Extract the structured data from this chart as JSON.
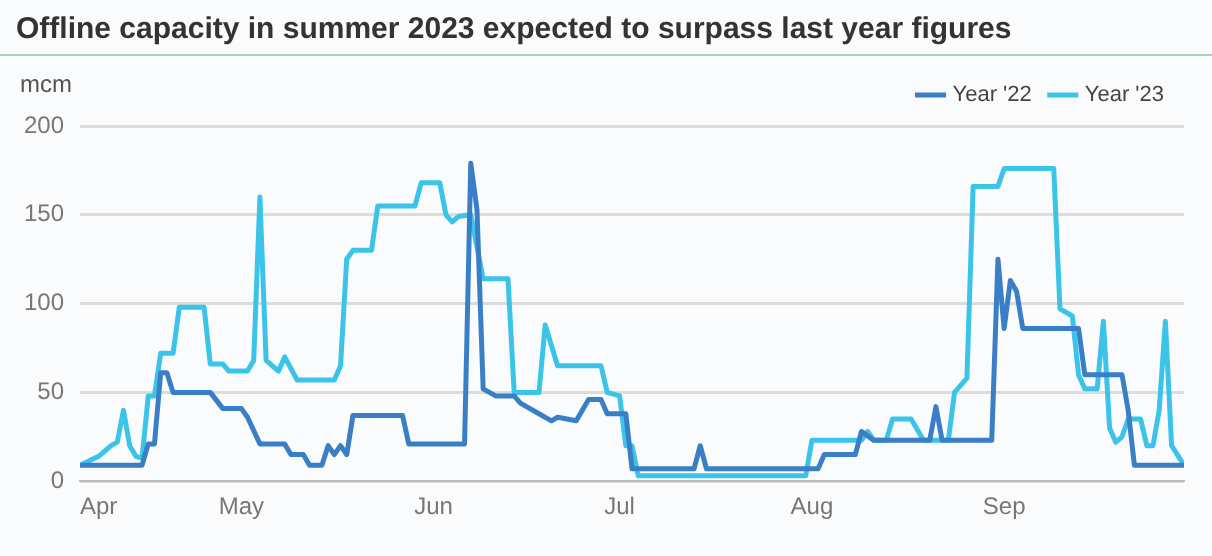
{
  "chart_data": {
    "type": "line",
    "title": "Offline capacity in summer 2023 expected to surpass last year figures",
    "ylabel": "mcm",
    "xlim": [
      "--04-05",
      "--09-30"
    ],
    "xticks": [
      {
        "value": "--04-08",
        "label": "Apr"
      },
      {
        "value": "--05-01",
        "label": "May"
      },
      {
        "value": "--06-01",
        "label": "Jun"
      },
      {
        "value": "--07-01",
        "label": "Jul"
      },
      {
        "value": "--08-01",
        "label": "Aug"
      },
      {
        "value": "--09-01",
        "label": "Sep"
      }
    ],
    "ylim": [
      0,
      200
    ],
    "yticks": [
      0,
      50,
      100,
      150,
      200
    ],
    "grid": "y",
    "legend": "top right",
    "marker": "none",
    "line_style": "solid",
    "series": [
      {
        "name": "Year '22",
        "color": "#3a7ec6",
        "x": [
          "--04-05",
          "--04-15",
          "--04-16",
          "--04-17",
          "--04-18",
          "--04-19",
          "--04-20",
          "--04-26",
          "--04-28",
          "--05-01",
          "--05-02",
          "--05-04",
          "--05-08",
          "--05-09",
          "--05-11",
          "--05-12",
          "--05-14",
          "--05-15",
          "--05-16",
          "--05-17",
          "--05-18",
          "--05-19",
          "--05-27",
          "--05-28",
          "--06-06",
          "--06-07",
          "--06-08",
          "--06-09",
          "--06-11",
          "--06-14",
          "--06-15",
          "--06-18",
          "--06-20",
          "--06-21",
          "--06-24",
          "--06-26",
          "--06-28",
          "--06-29",
          "--07-02",
          "--07-03",
          "--07-13",
          "--07-14",
          "--07-15",
          "--08-02",
          "--08-03",
          "--08-08",
          "--08-09",
          "--08-11",
          "--08-20",
          "--08-21",
          "--08-22",
          "--08-30",
          "--08-31",
          "--09-01",
          "--09-02",
          "--09-03",
          "--09-04",
          "--09-13",
          "--09-14",
          "--09-20",
          "--09-21",
          "--09-22",
          "--09-30"
        ],
        "values": [
          9,
          9,
          21,
          21,
          61,
          61,
          50,
          50,
          41,
          41,
          36,
          21,
          21,
          15,
          15,
          9,
          9,
          20,
          15,
          20,
          15,
          37,
          37,
          21,
          21,
          179,
          153,
          52,
          48,
          48,
          44,
          38,
          34,
          36,
          34,
          46,
          46,
          38,
          38,
          7,
          7,
          20,
          7,
          7,
          15,
          15,
          28,
          23,
          23,
          42,
          23,
          23,
          125,
          86,
          113,
          107,
          86,
          86,
          60,
          60,
          40,
          9,
          9
        ]
      },
      {
        "name": "Year '23",
        "color": "#3cc3ea",
        "x": [
          "--04-05",
          "--04-08",
          "--04-10",
          "--04-11",
          "--04-12",
          "--04-13",
          "--04-14",
          "--04-15",
          "--04-16",
          "--04-17",
          "--04-18",
          "--04-20",
          "--04-21",
          "--04-25",
          "--04-26",
          "--04-28",
          "--04-29",
          "--05-02",
          "--05-03",
          "--05-04",
          "--05-05",
          "--05-06",
          "--05-07",
          "--05-08",
          "--05-10",
          "--05-16",
          "--05-17",
          "--05-18",
          "--05-19",
          "--05-22",
          "--05-23",
          "--05-29",
          "--05-30",
          "--06-02",
          "--06-03",
          "--06-04",
          "--06-05",
          "--06-07",
          "--06-09",
          "--06-13",
          "--06-14",
          "--06-18",
          "--06-19",
          "--06-21",
          "--06-28",
          "--06-29",
          "--07-01",
          "--07-02",
          "--07-03",
          "--07-04",
          "--07-31",
          "--08-01",
          "--08-09",
          "--08-10",
          "--08-11",
          "--08-13",
          "--08-14",
          "--08-17",
          "--08-19",
          "--08-23",
          "--08-24",
          "--08-26",
          "--08-27",
          "--08-31",
          "--09-01",
          "--09-09",
          "--09-10",
          "--09-12",
          "--09-13",
          "--09-14",
          "--09-16",
          "--09-17",
          "--09-18",
          "--09-19",
          "--09-20",
          "--09-21",
          "--09-23",
          "--09-24",
          "--09-25",
          "--09-26",
          "--09-27",
          "--09-28",
          "--09-30"
        ],
        "values": [
          9,
          14,
          20,
          22,
          40,
          20,
          14,
          13,
          48,
          48,
          72,
          72,
          98,
          98,
          66,
          66,
          62,
          62,
          68,
          160,
          68,
          65,
          62,
          70,
          57,
          57,
          65,
          125,
          130,
          130,
          155,
          155,
          168,
          168,
          150,
          146,
          149,
          150,
          114,
          114,
          50,
          50,
          88,
          65,
          65,
          50,
          48,
          20,
          20,
          3,
          3,
          23,
          23,
          28,
          23,
          23,
          35,
          35,
          23,
          23,
          50,
          58,
          166,
          166,
          176,
          176,
          97,
          93,
          60,
          52,
          52,
          90,
          30,
          22,
          25,
          35,
          35,
          20,
          20,
          40,
          90,
          20,
          9
        ]
      }
    ]
  }
}
